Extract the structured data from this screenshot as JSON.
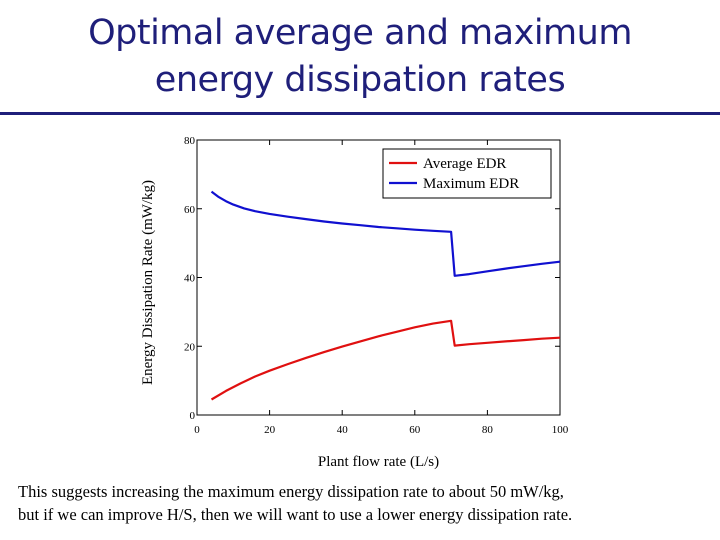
{
  "slide": {
    "title_line1": "Optimal average and maximum",
    "title_line2": "energy dissipation rates",
    "caption_line1": "This suggests increasing the maximum energy dissipation rate to about 50 mW/kg,",
    "caption_line2": "but if we can improve H/S, then we will want to use a lower energy dissipation rate."
  },
  "chart_data": {
    "type": "line",
    "xlabel": "Plant flow rate (L/s)",
    "ylabel": "Energy Dissipation Rate (mW/kg)",
    "xlim": [
      0,
      100
    ],
    "ylim": [
      0,
      80
    ],
    "xticks": [
      0,
      20,
      40,
      60,
      80,
      100
    ],
    "yticks": [
      0,
      20,
      40,
      60,
      80
    ],
    "grid": false,
    "legend_position": "top-right",
    "series": [
      {
        "name": "Average EDR",
        "color": "#e01010",
        "points": [
          [
            4,
            4.5
          ],
          [
            8,
            7
          ],
          [
            12,
            9.2
          ],
          [
            16,
            11.2
          ],
          [
            20,
            12.9
          ],
          [
            25,
            14.8
          ],
          [
            30,
            16.6
          ],
          [
            35,
            18.3
          ],
          [
            40,
            19.9
          ],
          [
            45,
            21.4
          ],
          [
            50,
            22.9
          ],
          [
            55,
            24.2
          ],
          [
            60,
            25.5
          ],
          [
            65,
            26.6
          ],
          [
            70,
            27.4
          ],
          [
            71,
            20.2
          ],
          [
            75,
            20.6
          ],
          [
            80,
            21
          ],
          [
            85,
            21.4
          ],
          [
            90,
            21.8
          ],
          [
            95,
            22.2
          ],
          [
            100,
            22.5
          ]
        ]
      },
      {
        "name": "Maximum EDR",
        "color": "#1010d0",
        "points": [
          [
            4,
            65
          ],
          [
            6,
            63.4
          ],
          [
            8,
            62.2
          ],
          [
            10,
            61.2
          ],
          [
            13,
            60.1
          ],
          [
            16,
            59.3
          ],
          [
            20,
            58.5
          ],
          [
            25,
            57.7
          ],
          [
            30,
            57
          ],
          [
            35,
            56.3
          ],
          [
            40,
            55.7
          ],
          [
            45,
            55.2
          ],
          [
            50,
            54.7
          ],
          [
            55,
            54.3
          ],
          [
            60,
            53.9
          ],
          [
            65,
            53.6
          ],
          [
            70,
            53.3
          ],
          [
            71,
            40.5
          ],
          [
            75,
            41
          ],
          [
            80,
            41.8
          ],
          [
            85,
            42.6
          ],
          [
            90,
            43.3
          ],
          [
            95,
            44
          ],
          [
            100,
            44.6
          ]
        ]
      }
    ]
  }
}
